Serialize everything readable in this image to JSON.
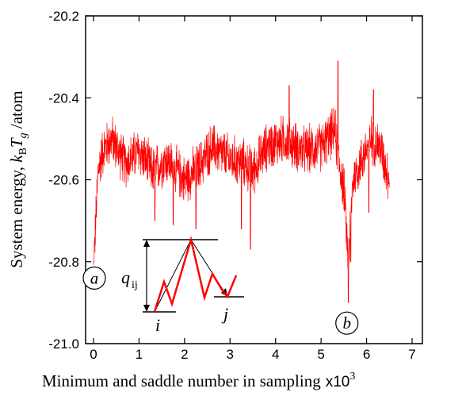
{
  "chart_data": {
    "type": "line",
    "xlabel": "Minimum and saddle number in sampling",
    "xlabel_suffix": "x10",
    "xlabel_exp": "3",
    "ylabel": {
      "prefix": "System energy, ",
      "k": "k",
      "k_sub": "B",
      "T": "T",
      "T_sub": "g",
      "suffix": " /atom"
    },
    "xlim": [
      0,
      7
    ],
    "ylim": [
      -21.0,
      -20.2
    ],
    "x_ticks": [
      0,
      1,
      2,
      3,
      4,
      5,
      6,
      7
    ],
    "y_ticks": [
      -21.0,
      -20.8,
      -20.6,
      -20.4,
      -20.2
    ],
    "x_tick_labels": [
      "0",
      "1",
      "2",
      "3",
      "4",
      "5",
      "6",
      "7"
    ],
    "y_tick_labels": [
      "-21.0",
      "-20.8",
      "-20.6",
      "-20.4",
      "-20.2"
    ],
    "grid": false,
    "series": [
      {
        "color": "#ff0000",
        "x_range": [
          0,
          6.5
        ],
        "baseline": -20.53,
        "noise_amplitude": 0.07,
        "x": [
          0,
          0.05,
          0.1,
          0.2,
          0.4,
          0.7,
          1.0,
          1.3,
          1.6,
          2.0,
          2.3,
          2.6,
          3.0,
          3.3,
          3.5,
          3.8,
          4.2,
          4.6,
          5.0,
          5.3,
          5.4,
          5.5,
          5.6,
          5.7,
          5.9,
          6.1,
          6.3,
          6.5
        ],
        "y": [
          -20.82,
          -20.7,
          -20.58,
          -20.53,
          -20.5,
          -20.56,
          -20.53,
          -20.58,
          -20.55,
          -20.6,
          -20.57,
          -20.52,
          -20.55,
          -20.56,
          -20.58,
          -20.52,
          -20.5,
          -20.53,
          -20.52,
          -20.48,
          -20.56,
          -20.62,
          -20.8,
          -20.6,
          -20.55,
          -20.5,
          -20.52,
          -20.6
        ],
        "peaks": [
          [
            0.01,
            -20.8
          ],
          [
            1.35,
            -20.7
          ],
          [
            1.75,
            -20.71
          ],
          [
            2.25,
            -20.72
          ],
          [
            3.25,
            -20.72
          ],
          [
            3.45,
            -20.77
          ],
          [
            4.3,
            -20.37
          ],
          [
            5.37,
            -20.31
          ],
          [
            5.6,
            -20.9
          ],
          [
            5.65,
            -20.8
          ],
          [
            6.15,
            -20.38
          ],
          [
            6.05,
            -20.68
          ]
        ]
      }
    ],
    "annotations": [
      {
        "label": "a",
        "x": 0.0,
        "y": -20.84
      },
      {
        "label": "b",
        "x": 5.55,
        "y": -20.95
      }
    ],
    "inset": {
      "label_q": "q",
      "label_q_sub": "ij",
      "label_i": "i",
      "label_j": "j",
      "line_color": "#ff0000"
    }
  }
}
